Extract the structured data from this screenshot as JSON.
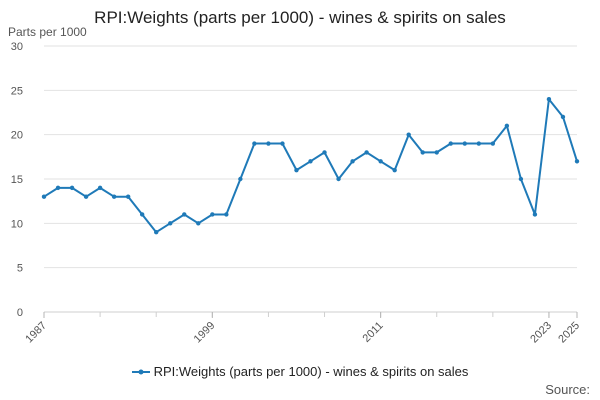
{
  "chart_data": {
    "type": "line",
    "title": "RPI:Weights (parts per 1000) - wines & spirits on sales",
    "ylabel": "Parts per 1000",
    "xlabel": "",
    "ylim": [
      0,
      30
    ],
    "yticks": [
      0,
      5,
      10,
      15,
      20,
      25,
      30
    ],
    "xlim": [
      1987,
      2025
    ],
    "xticks": [
      1987,
      1999,
      2011,
      2023,
      2025
    ],
    "grid": true,
    "legend_position": "bottom",
    "series": [
      {
        "name": "RPI:Weights (parts per 1000) - wines & spirits on sales",
        "color": "#1f7ab8",
        "x": [
          1987,
          1988,
          1989,
          1990,
          1991,
          1992,
          1993,
          1994,
          1995,
          1996,
          1997,
          1998,
          1999,
          2000,
          2001,
          2002,
          2003,
          2004,
          2005,
          2006,
          2007,
          2008,
          2009,
          2010,
          2011,
          2012,
          2013,
          2014,
          2015,
          2016,
          2017,
          2018,
          2019,
          2020,
          2021,
          2022,
          2023,
          2024,
          2025
        ],
        "values": [
          13,
          14,
          14,
          13,
          14,
          13,
          13,
          11,
          9,
          10,
          11,
          10,
          11,
          11,
          15,
          19,
          19,
          19,
          16,
          17,
          18,
          15,
          17,
          18,
          17,
          16,
          20,
          18,
          18,
          19,
          19,
          19,
          19,
          21,
          15,
          11,
          24,
          22,
          17
        ]
      }
    ]
  },
  "footer": {
    "source": "Source:"
  }
}
